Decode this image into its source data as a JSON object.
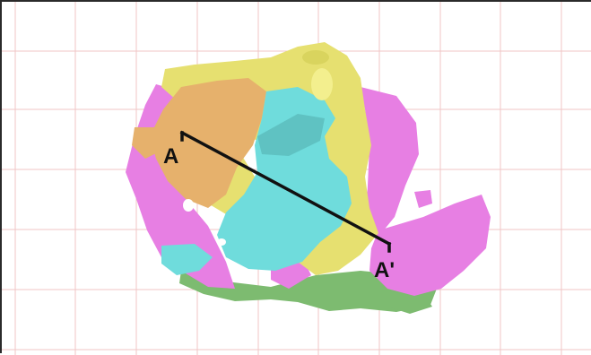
{
  "section_line": {
    "start_label": "A",
    "end_label": "A'"
  },
  "colors": {
    "yellow": "#e6e070",
    "orange": "#e6b16c",
    "cyan": "#6fdcdc",
    "magenta": "#e77fe3",
    "green": "#7dbb70",
    "grid": "#f1c6c6",
    "line": "#111111"
  }
}
